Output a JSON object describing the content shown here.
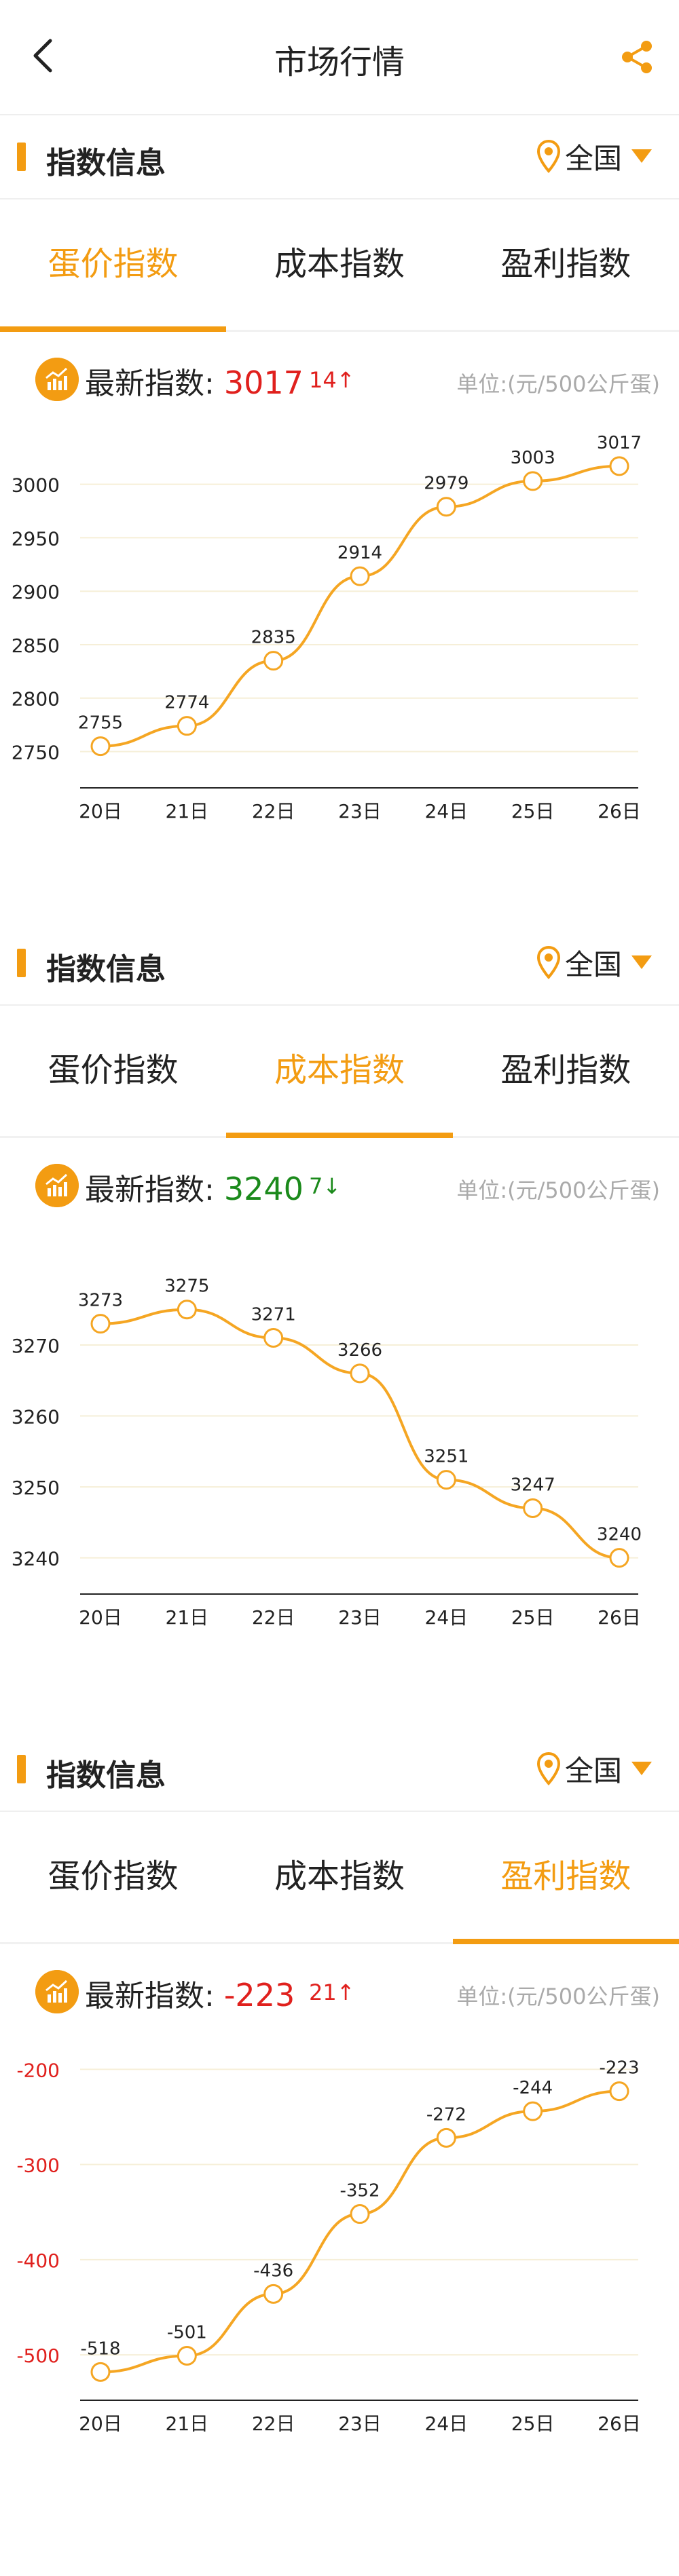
{
  "header": {
    "title": "市场行情"
  },
  "sections": [
    {
      "title": "指数信息",
      "region": "全国",
      "tabs": [
        "蛋价指数",
        "成本指数",
        "盈利指数"
      ],
      "active_tab": 0,
      "latest_label": "最新指数:",
      "latest_value": "3017",
      "value_color": "#e0201d",
      "change": "14↑",
      "change_color": "#e0201d",
      "unit": "单位:(元/500公斤蛋)"
    },
    {
      "title": "指数信息",
      "region": "全国",
      "tabs": [
        "蛋价指数",
        "成本指数",
        "盈利指数"
      ],
      "active_tab": 1,
      "latest_label": "最新指数:",
      "latest_value": "3240",
      "value_color": "#1b8a1b",
      "change": "7↓",
      "change_color": "#1b8a1b",
      "unit": "单位:(元/500公斤蛋)"
    },
    {
      "title": "指数信息",
      "region": "全国",
      "tabs": [
        "蛋价指数",
        "成本指数",
        "盈利指数"
      ],
      "active_tab": 2,
      "latest_label": "最新指数:",
      "latest_value": "-223",
      "value_color": "#e0201d",
      "change": "21↑",
      "change_color": "#e0201d",
      "unit": "单位:(元/500公斤蛋)"
    }
  ],
  "chart_data": [
    {
      "type": "line",
      "categories": [
        "20日",
        "21日",
        "22日",
        "23日",
        "24日",
        "25日",
        "26日"
      ],
      "values": [
        2755,
        2774,
        2835,
        2914,
        2979,
        3003,
        3017
      ],
      "yticks": [
        2750,
        2800,
        2850,
        2900,
        2950,
        3000
      ],
      "ylim": [
        2730,
        3022
      ],
      "line_color": "#f5a623",
      "ytick_color": "#222222"
    },
    {
      "type": "line",
      "categories": [
        "20日",
        "21日",
        "22日",
        "23日",
        "24日",
        "25日",
        "26日"
      ],
      "values": [
        3273,
        3275,
        3271,
        3266,
        3251,
        3247,
        3240
      ],
      "yticks": [
        3240,
        3250,
        3260,
        3270
      ],
      "ylim": [
        3237,
        3281
      ],
      "line_color": "#f5a623",
      "ytick_color": "#222222"
    },
    {
      "type": "line",
      "categories": [
        "20日",
        "21日",
        "22日",
        "23日",
        "24日",
        "25日",
        "26日"
      ],
      "values": [
        -518,
        -501,
        -436,
        -352,
        -272,
        -244,
        -223
      ],
      "yticks": [
        -500,
        -400,
        -300,
        -200
      ],
      "ylim": [
        -532,
        -204
      ],
      "line_color": "#f5a623",
      "ytick_color": "#e0201d"
    }
  ]
}
